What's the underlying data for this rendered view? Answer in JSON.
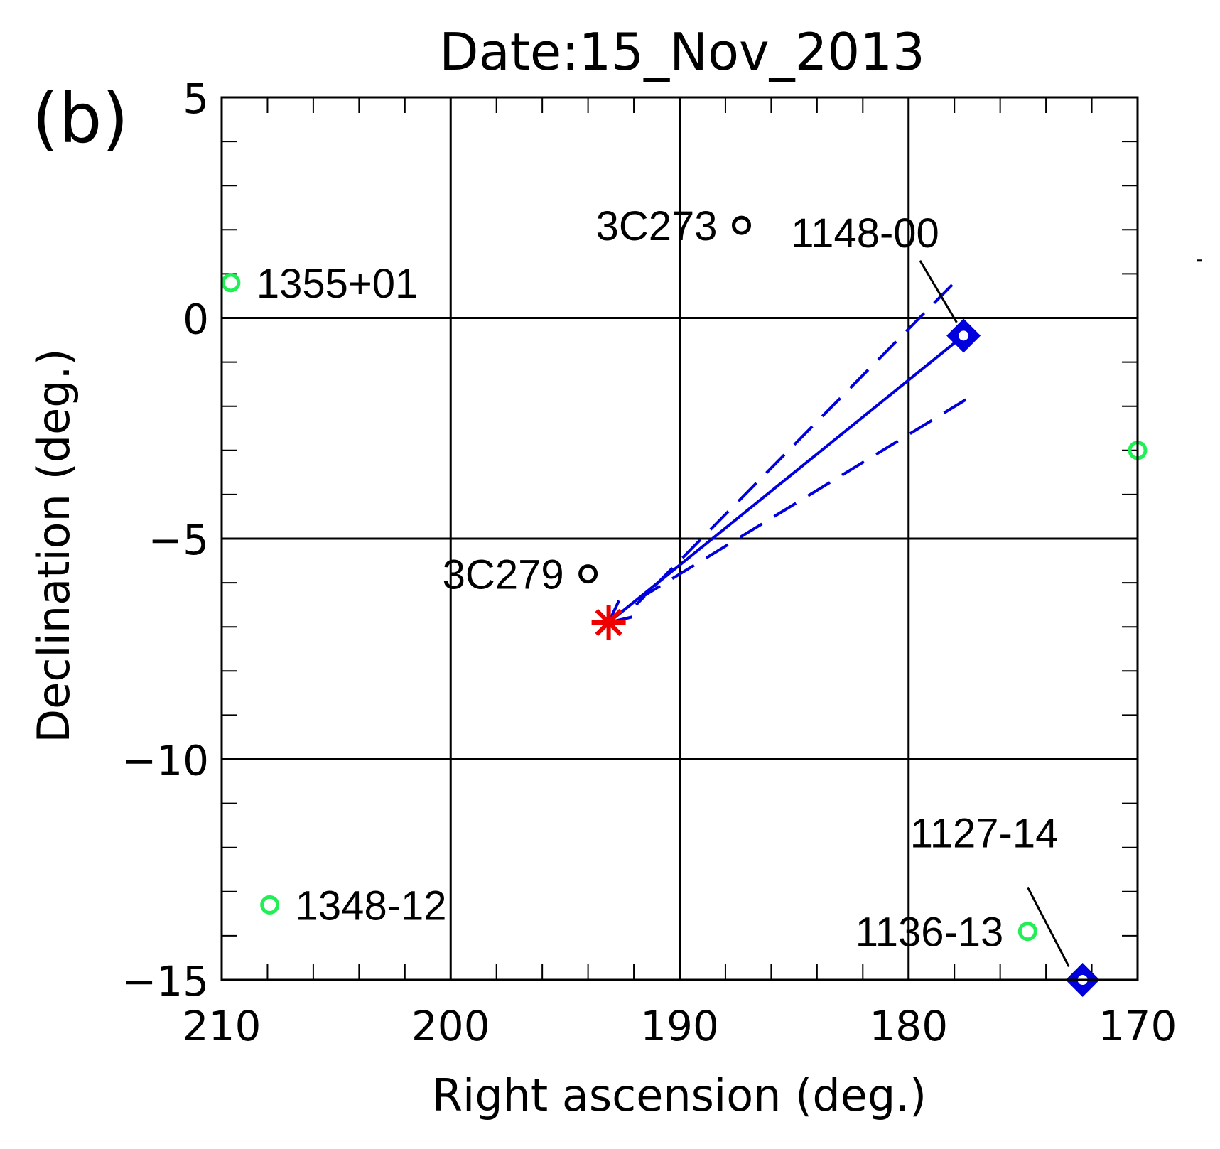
{
  "chart_data": {
    "type": "scatter",
    "panel_label": "(b)",
    "title": "Date:15_Nov_2013",
    "xlabel": "Right ascension (deg.)",
    "ylabel": "Declination (deg.)",
    "xlim": [
      210,
      170
    ],
    "ylim": [
      -15,
      5
    ],
    "grid": true,
    "x_ticks": [
      210,
      200,
      190,
      180,
      170
    ],
    "x_tick_labels": [
      "210",
      "200",
      "190",
      "180",
      "170"
    ],
    "y_ticks": [
      5,
      0,
      -5,
      -10,
      -15
    ],
    "y_tick_labels": [
      "5",
      "0",
      "−5",
      "−10",
      "−15"
    ],
    "minor_x_step": 2,
    "minor_y_step": 1,
    "colors": {
      "black_source": "#000000",
      "green_source": "#22ee55",
      "blue": "#0000dd",
      "red": "#ee0000"
    },
    "sources": [
      {
        "name": "3C273",
        "ra": 187.3,
        "dec": 2.1,
        "color": "black",
        "label_side": "left"
      },
      {
        "name": "1355+01",
        "ra": 209.6,
        "dec": 0.8,
        "color": "green",
        "label_side": "right"
      },
      {
        "name": "3C279",
        "ra": 194.0,
        "dec": -5.8,
        "color": "black",
        "label_side": "left"
      },
      {
        "name": "1348-12",
        "ra": 207.9,
        "dec": -13.3,
        "color": "green",
        "label_side": "right"
      },
      {
        "name": "1136-13",
        "ra": 174.8,
        "dec": -13.9,
        "color": "green",
        "label_side": "left"
      },
      {
        "name": "",
        "ra": 170.0,
        "dec": -3.0,
        "color": "green",
        "label_side": "none"
      }
    ],
    "blue_sources": [
      {
        "name": "1148-00",
        "ra": 177.6,
        "dec": -0.4,
        "label_ra": 181.9,
        "label_dec": 1.6,
        "leader_from": [
          179.5,
          1.3
        ],
        "leader_to": [
          177.9,
          -0.1
        ]
      },
      {
        "name": "1127-14",
        "ra": 172.4,
        "dec": -15.0,
        "label_ra": 176.7,
        "label_dec": -12.0,
        "leader_from": [
          174.8,
          -12.9
        ],
        "leader_to": [
          173.0,
          -14.7
        ]
      }
    ],
    "target": {
      "ra": 193.1,
      "dec": -6.9,
      "marker": "asterisk",
      "color": "red"
    },
    "arrow": {
      "from": [
        177.6,
        -0.4
      ],
      "to": [
        193.1,
        -6.9
      ],
      "color": "blue"
    },
    "dashed_bounds": [
      {
        "from": [
          178.1,
          0.75
        ],
        "to": [
          191.9,
          -6.5
        ]
      },
      {
        "from": [
          177.5,
          -1.85
        ],
        "to": [
          192.2,
          -6.5
        ]
      }
    ],
    "stray_mark": {
      "ra": 167.3,
      "dec": 1.3
    }
  }
}
